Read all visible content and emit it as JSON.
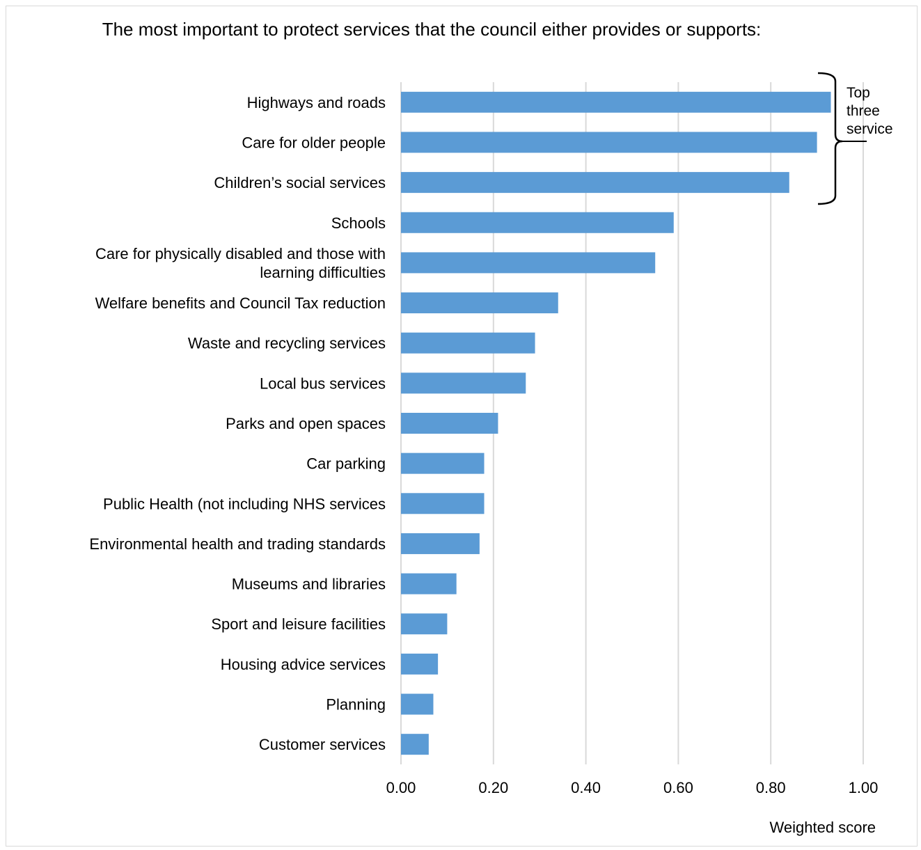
{
  "chart_data": {
    "type": "bar",
    "orientation": "horizontal",
    "title": "The most important to protect services that the council either provides or supports:",
    "xlabel": "Weighted score",
    "ylabel": "",
    "xlim": [
      0,
      1
    ],
    "x_ticks": [
      "0.00",
      "0.20",
      "0.40",
      "0.60",
      "0.80",
      "1.00"
    ],
    "grid": "vertical",
    "bar_color": "#5b9bd5",
    "categories": [
      [
        "Highways and roads"
      ],
      [
        "Care for older people"
      ],
      [
        "Children’s social services"
      ],
      [
        "Schools"
      ],
      [
        "Care for physically disabled and those with",
        "learning difficulties"
      ],
      [
        "Welfare benefits and Council Tax reduction"
      ],
      [
        "Waste and recycling services"
      ],
      [
        "Local bus services"
      ],
      [
        "Parks and open spaces"
      ],
      [
        "Car parking"
      ],
      [
        "Public Health (not including NHS services"
      ],
      [
        "Environmental health and trading standards"
      ],
      [
        "Museums and libraries"
      ],
      [
        "Sport and leisure facilities"
      ],
      [
        "Housing advice services"
      ],
      [
        "Planning"
      ],
      [
        "Customer services"
      ]
    ],
    "values": [
      0.93,
      0.9,
      0.84,
      0.59,
      0.55,
      0.34,
      0.29,
      0.27,
      0.21,
      0.18,
      0.18,
      0.17,
      0.12,
      0.1,
      0.08,
      0.07,
      0.06
    ],
    "annotation": {
      "type": "bracket",
      "spans_categories": [
        0,
        2
      ],
      "text_lines": [
        "Top",
        "three",
        "service"
      ]
    }
  }
}
